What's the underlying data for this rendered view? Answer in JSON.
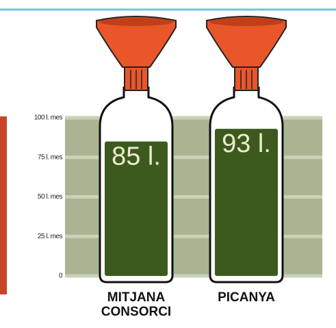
{
  "chart_data": {
    "type": "bar",
    "categories": [
      "MITJANA CONSORCI",
      "PICANYA"
    ],
    "values": [
      85,
      93
    ],
    "value_labels": [
      "85 l.",
      "93 l."
    ],
    "color": "#3d5a1e",
    "ylim": [
      0,
      100
    ],
    "yticks": [
      0,
      {
        "value": 25,
        "label": "25 l. mes"
      },
      {
        "value": 50,
        "label": "50 l. mes"
      },
      {
        "value": 75,
        "label": "75 l. mes"
      },
      {
        "value": 100,
        "label": "100 l. mes"
      }
    ],
    "grid": true
  }
}
